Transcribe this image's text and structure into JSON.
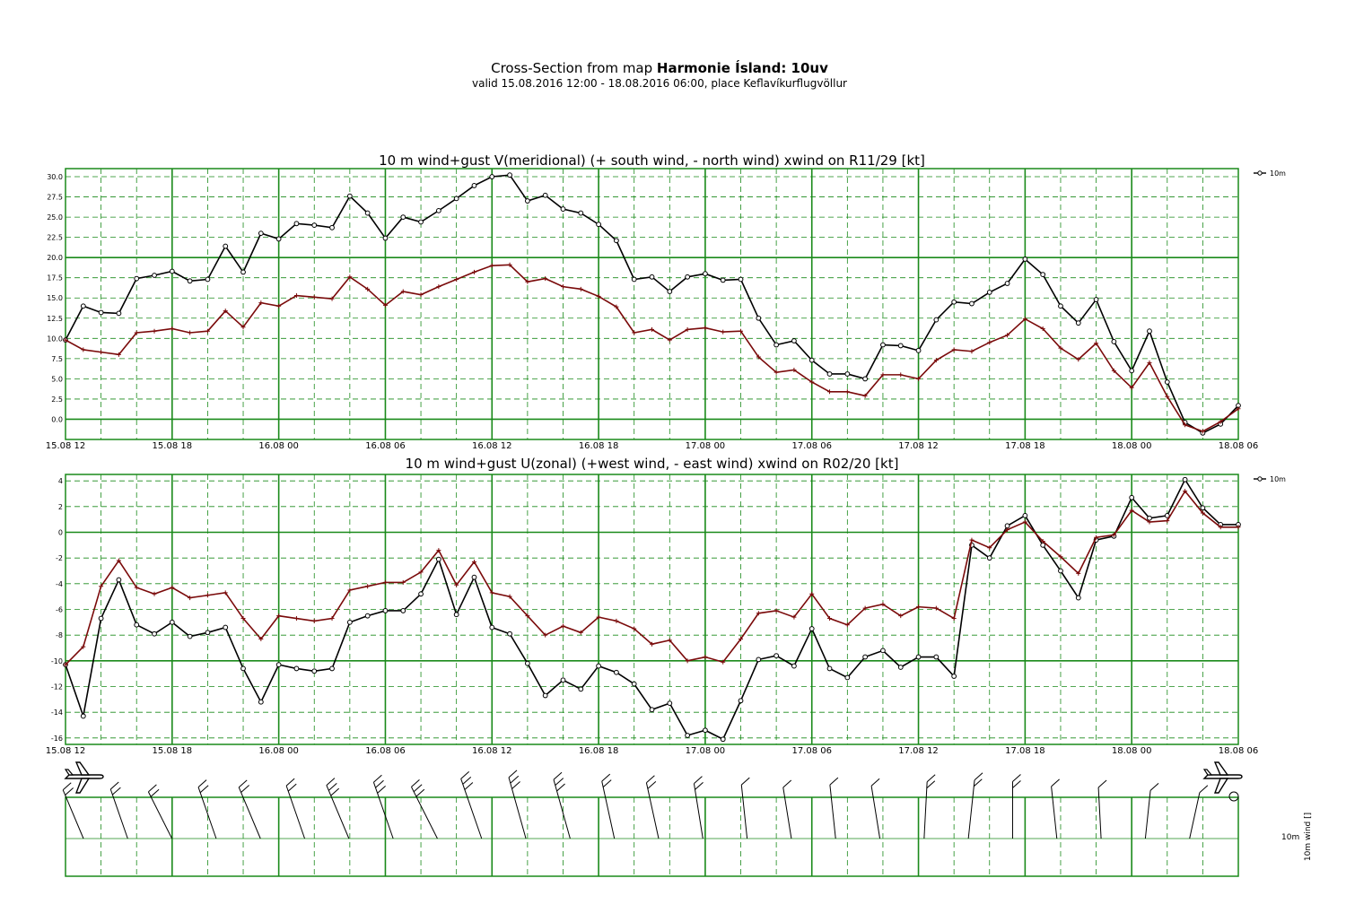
{
  "header": {
    "title_prefix": "Cross-Section from map ",
    "title_bold": "Harmonie Ísland: 10uv",
    "subtitle": "valid 15.08.2016 12:00 - 18.08.2016 06:00, place Keflavíkurflugvöllur"
  },
  "colors": {
    "grid": "#1a8a1a",
    "wind": "#000000",
    "gust": "#7a0a0a"
  },
  "icons": [
    "airplane-icon",
    "airplane-icon",
    "calm-circle-icon"
  ],
  "chart_data": [
    {
      "type": "line",
      "title": "10 m wind+gust V(meridional) (+ south wind, - north wind) xwind on R11/29 [kt]",
      "x_tick_labels": [
        "15.08 12",
        "15.08 18",
        "16.08 00",
        "16.08 06",
        "16.08 12",
        "16.08 18",
        "17.08 00",
        "17.08 06",
        "17.08 12",
        "17.08 18",
        "18.08 00",
        "18.08 06"
      ],
      "x_range_hours": [
        0,
        66
      ],
      "ylim": [
        -2.5,
        31
      ],
      "y_ticks": [
        0.0,
        2.5,
        5.0,
        7.5,
        10.0,
        12.5,
        15.0,
        17.5,
        20.0,
        22.5,
        25.0,
        27.5,
        30.0
      ],
      "y_tick_labels": [
        "0.0",
        "2.5",
        "5.0",
        "7.5",
        "10.0",
        "12.5",
        "15.0",
        "17.5",
        "20.0",
        "22.5",
        "25.0",
        "27.5",
        "30.0"
      ],
      "legend": "10m",
      "series": [
        {
          "name": "10m",
          "marker": "circle",
          "values": [
            9.8,
            14.0,
            13.2,
            13.1,
            17.4,
            17.8,
            18.3,
            17.1,
            17.3,
            21.4,
            18.2,
            23.0,
            22.3,
            24.2,
            24.0,
            23.7,
            27.6,
            25.5,
            22.4,
            25.0,
            24.4,
            25.8,
            27.3,
            28.9,
            30.0,
            30.2,
            27.0,
            27.7,
            26.0,
            25.5,
            24.1,
            22.1,
            17.3,
            17.6,
            15.8,
            17.6,
            18.0,
            17.2,
            17.3,
            12.5,
            9.2,
            9.7,
            7.3,
            5.6,
            5.6,
            5.0,
            9.2,
            9.1,
            8.5,
            12.3,
            14.5,
            14.3,
            15.7,
            16.8,
            19.8,
            17.9,
            14.0,
            11.9,
            14.8,
            9.6,
            6.0,
            10.9,
            4.6,
            -0.4,
            -1.7,
            -0.6,
            1.7
          ]
        },
        {
          "name": "",
          "marker": "plus",
          "values": [
            9.8,
            8.6,
            8.3,
            8.0,
            10.7,
            10.9,
            11.2,
            10.7,
            10.9,
            13.4,
            11.4,
            14.4,
            14.0,
            15.3,
            15.1,
            14.9,
            17.6,
            16.1,
            14.1,
            15.8,
            15.4,
            16.4,
            17.3,
            18.2,
            19.0,
            19.1,
            17.0,
            17.4,
            16.4,
            16.1,
            15.2,
            13.9,
            10.7,
            11.1,
            9.8,
            11.1,
            11.3,
            10.8,
            10.9,
            7.7,
            5.8,
            6.1,
            4.6,
            3.4,
            3.4,
            2.9,
            5.5,
            5.5,
            5.0,
            7.3,
            8.6,
            8.4,
            9.5,
            10.4,
            12.4,
            11.2,
            8.8,
            7.4,
            9.4,
            6.0,
            3.9,
            7.0,
            2.8,
            -0.7,
            -1.5,
            -0.3,
            1.3
          ]
        }
      ]
    },
    {
      "type": "line",
      "title": "10 m wind+gust U(zonal) (+west wind, - east wind) xwind on R02/20 [kt]",
      "x_tick_labels": [
        "15.08 12",
        "15.08 18",
        "16.08 00",
        "16.08 06",
        "16.08 12",
        "16.08 18",
        "17.08 00",
        "17.08 06",
        "17.08 12",
        "17.08 18",
        "18.08 00",
        "18.08 06"
      ],
      "x_range_hours": [
        0,
        66
      ],
      "ylim": [
        -16.5,
        4.5
      ],
      "y_ticks": [
        -16,
        -14,
        -12,
        -10,
        -8,
        -6,
        -4,
        -2,
        0,
        2,
        4
      ],
      "y_tick_labels": [
        "-16",
        "-14",
        "-12",
        "-10",
        "-8",
        "-6",
        "-4",
        "-2",
        "0",
        "2",
        "4"
      ],
      "legend": "10m",
      "series": [
        {
          "name": "10m",
          "marker": "circle",
          "values": [
            -10.3,
            -14.3,
            -6.7,
            -3.7,
            -7.2,
            -7.9,
            -7.0,
            -8.1,
            -7.8,
            -7.4,
            -10.6,
            -13.2,
            -10.3,
            -10.6,
            -10.8,
            -10.6,
            -7.0,
            -6.5,
            -6.1,
            -6.1,
            -4.8,
            -2.1,
            -6.4,
            -3.5,
            -7.4,
            -7.9,
            -10.2,
            -12.7,
            -11.5,
            -12.2,
            -10.4,
            -10.9,
            -11.8,
            -13.8,
            -13.3,
            -15.8,
            -15.4,
            -16.1,
            -13.1,
            -9.9,
            -9.6,
            -10.4,
            -7.5,
            -10.6,
            -11.3,
            -9.7,
            -9.2,
            -10.5,
            -9.7,
            -9.7,
            -11.2,
            -1.0,
            -2.0,
            0.5,
            1.3,
            -1.0,
            -3.0,
            -5.1,
            -0.6,
            -0.3,
            2.7,
            1.1,
            1.3,
            4.1,
            1.9,
            0.6,
            0.6
          ]
        },
        {
          "name": "",
          "marker": "plus",
          "values": [
            -10.3,
            -8.9,
            -4.2,
            -2.2,
            -4.3,
            -4.8,
            -4.3,
            -5.1,
            -4.9,
            -4.7,
            -6.7,
            -8.3,
            -6.5,
            -6.7,
            -6.9,
            -6.7,
            -4.5,
            -4.2,
            -3.9,
            -3.9,
            -3.1,
            -1.4,
            -4.1,
            -2.3,
            -4.7,
            -5.0,
            -6.5,
            -8.0,
            -7.3,
            -7.8,
            -6.6,
            -6.9,
            -7.5,
            -8.7,
            -8.4,
            -10.0,
            -9.7,
            -10.1,
            -8.3,
            -6.3,
            -6.1,
            -6.6,
            -4.8,
            -6.7,
            -7.2,
            -5.9,
            -5.6,
            -6.5,
            -5.8,
            -5.9,
            -6.7,
            -0.6,
            -1.2,
            0.2,
            0.8,
            -0.7,
            -1.9,
            -3.2,
            -0.4,
            -0.2,
            1.7,
            0.8,
            0.9,
            3.2,
            1.5,
            0.4,
            0.4
          ]
        }
      ]
    }
  ],
  "wind_panel": {
    "label": "10m",
    "axis_label": "10m wind []",
    "barbs": [
      {
        "dir": 325,
        "speed": 18
      },
      {
        "dir": 330,
        "speed": 15
      },
      {
        "dir": 320,
        "speed": 20
      },
      {
        "dir": 330,
        "speed": 18
      },
      {
        "dir": 325,
        "speed": 22
      },
      {
        "dir": 330,
        "speed": 20
      },
      {
        "dir": 325,
        "speed": 25
      },
      {
        "dir": 330,
        "speed": 25
      },
      {
        "dir": 320,
        "speed": 28
      },
      {
        "dir": 330,
        "speed": 30
      },
      {
        "dir": 335,
        "speed": 28
      },
      {
        "dir": 335,
        "speed": 25
      },
      {
        "dir": 340,
        "speed": 20
      },
      {
        "dir": 340,
        "speed": 18
      },
      {
        "dir": 345,
        "speed": 15
      },
      {
        "dir": 350,
        "speed": 12
      },
      {
        "dir": 345,
        "speed": 10
      },
      {
        "dir": 350,
        "speed": 12
      },
      {
        "dir": 345,
        "speed": 12
      },
      {
        "dir": 5,
        "speed": 15
      },
      {
        "dir": 10,
        "speed": 18
      },
      {
        "dir": 0,
        "speed": 15
      },
      {
        "dir": 350,
        "speed": 10
      },
      {
        "dir": 355,
        "speed": 8
      },
      {
        "dir": 10,
        "speed": 5
      },
      {
        "dir": 20,
        "speed": 5
      },
      {
        "dir": 0,
        "speed": 0
      }
    ]
  }
}
